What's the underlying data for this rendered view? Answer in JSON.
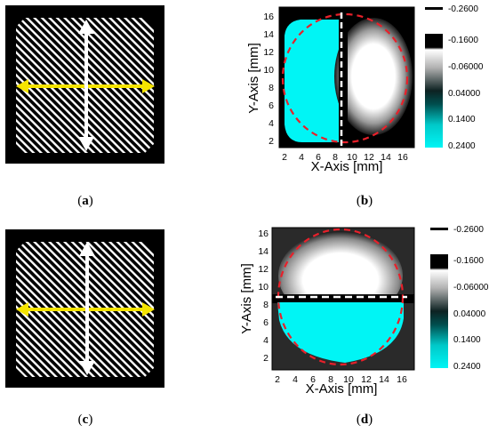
{
  "figure": {
    "panels": [
      {
        "id": "a",
        "caption": "a",
        "kind": "grating",
        "arrow_horizontal": "yellow double arrow",
        "arrow_vertical": "white double arrow"
      },
      {
        "id": "b",
        "caption": "b",
        "kind": "map",
        "split": "vertical",
        "left_half": "cyan",
        "right_half": "white"
      },
      {
        "id": "c",
        "caption": "c",
        "kind": "grating",
        "arrow_horizontal": "yellow double arrow",
        "arrow_vertical": "white double arrow"
      },
      {
        "id": "d",
        "caption": "d",
        "kind": "map",
        "split": "horizontal",
        "top_half": "white",
        "bottom_half": "cyan"
      }
    ],
    "paren_open": "(",
    "paren_close": ")"
  },
  "axes": {
    "xlabel": "X-Axis [mm]",
    "ylabel": "Y-Axis [mm]",
    "x_ticks": [
      "2",
      "4",
      "6",
      "8",
      "10",
      "12",
      "14",
      "16"
    ],
    "y_ticks": [
      "2",
      "4",
      "6",
      "8",
      "10",
      "12",
      "14",
      "16"
    ]
  },
  "colorbar": {
    "labels": [
      "-0.2600",
      "-0.1600",
      "-0.06000",
      "0.04000",
      "0.1400",
      "0.2400"
    ]
  },
  "colors": {
    "cyan": "#00f5f5",
    "yellow": "#f5e400",
    "dashed_circle": "#e8202a",
    "background_map": "#000000"
  }
}
